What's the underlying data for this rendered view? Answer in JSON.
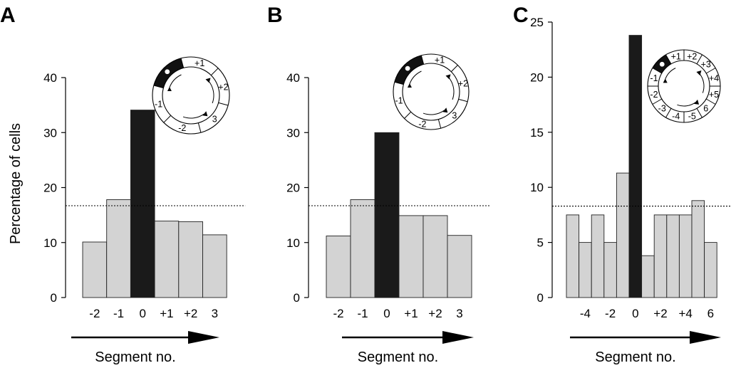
{
  "ylabel": "Percentage of cells",
  "xlabel": "Segment no.",
  "colors": {
    "bar_light": "#d3d3d3",
    "bar_dark": "#1a1a1a",
    "axis": "#000000"
  },
  "chart_data": [
    {
      "type": "bar",
      "panel": "A",
      "categories": [
        "-2",
        "-1",
        "0",
        "+1",
        "+2",
        "3"
      ],
      "values": [
        10.1,
        17.8,
        34.1,
        13.9,
        13.8,
        11.4
      ],
      "highlight_index": 2,
      "reference_line": 16.7,
      "ylim": [
        0,
        40
      ],
      "yticks": [
        0,
        10,
        20,
        30,
        40
      ],
      "xtick_labels": [
        "-2",
        "-1",
        "0",
        "+1",
        "+2",
        "3"
      ],
      "ylabel": "Percentage of cells",
      "xlabel": "Segment no.",
      "inset_labels": [
        "3",
        "+2",
        "+1",
        "-1",
        "-2"
      ]
    },
    {
      "type": "bar",
      "panel": "B",
      "categories": [
        "-2",
        "-1",
        "0",
        "+1",
        "+2",
        "3"
      ],
      "values": [
        11.2,
        17.8,
        30.0,
        14.9,
        14.9,
        11.3
      ],
      "highlight_index": 2,
      "reference_line": 16.7,
      "ylim": [
        0,
        40
      ],
      "yticks": [
        0,
        10,
        20,
        30,
        40
      ],
      "xtick_labels": [
        "-2",
        "-1",
        "0",
        "+1",
        "+2",
        "3"
      ],
      "ylabel": "",
      "xlabel": "Segment no.",
      "inset_labels": [
        "3",
        "+2",
        "+1",
        "-1",
        "-2"
      ]
    },
    {
      "type": "bar",
      "panel": "C",
      "categories": [
        "-5",
        "-4",
        "-3",
        "-2",
        "-1",
        "0",
        "+1",
        "+2",
        "+3",
        "+4",
        "+5",
        "6"
      ],
      "values": [
        7.5,
        5.0,
        7.5,
        5.0,
        11.3,
        23.8,
        3.8,
        7.5,
        7.5,
        7.5,
        8.8,
        5.0
      ],
      "highlight_index": 5,
      "reference_line": 8.3,
      "ylim": [
        0,
        25
      ],
      "yticks": [
        0,
        5,
        10,
        15,
        20,
        25
      ],
      "xtick_labels": [
        "-4",
        "-2",
        "0",
        "+2",
        "+4",
        "6"
      ],
      "ylabel": "",
      "xlabel": "Segment no.",
      "inset_labels": [
        "-4",
        "-5",
        "6",
        "+5",
        "+4",
        "+3",
        "+2",
        "+1",
        "-1",
        "-2",
        "-3"
      ]
    }
  ]
}
